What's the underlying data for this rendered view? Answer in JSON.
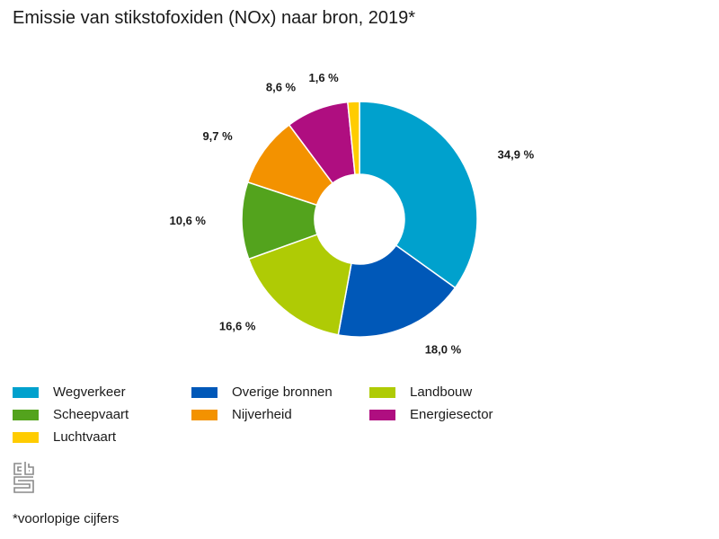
{
  "chart_data": {
    "type": "pie",
    "variant": "donut",
    "title": "Emissie van stikstofoxiden (NOx) naar bron, 2019*",
    "unit": "%",
    "start": "top",
    "direction": "clockwise",
    "slices": [
      {
        "name": "Wegverkeer",
        "value": 34.9,
        "label": "34,9 %",
        "color": "#00a1cd"
      },
      {
        "name": "Overige bronnen",
        "value": 18.0,
        "label": "18,0 %",
        "color": "#0058b8"
      },
      {
        "name": "Landbouw",
        "value": 16.6,
        "label": "16,6 %",
        "color": "#afcb05"
      },
      {
        "name": "Scheepvaart",
        "value": 10.6,
        "label": "10,6 %",
        "color": "#53a31d"
      },
      {
        "name": "Nijverheid",
        "value": 9.7,
        "label": "9,7 %",
        "color": "#f39200"
      },
      {
        "name": "Energiesector",
        "value": 8.6,
        "label": "8,6 %",
        "color": "#af0e80"
      },
      {
        "name": "Luchtvaart",
        "value": 1.6,
        "label": "1,6 %",
        "color": "#ffcc00"
      }
    ],
    "legend_position": "bottom",
    "legend": [
      {
        "label": "Wegverkeer",
        "color": "#00a1cd"
      },
      {
        "label": "Overige bronnen",
        "color": "#0058b8"
      },
      {
        "label": "Landbouw",
        "color": "#afcb05"
      },
      {
        "label": "Scheepvaart",
        "color": "#53a31d"
      },
      {
        "label": "Nijverheid",
        "color": "#f39200"
      },
      {
        "label": "Energiesector",
        "color": "#af0e80"
      },
      {
        "label": "Luchtvaart",
        "color": "#ffcc00"
      }
    ]
  },
  "footnote": "*voorlopige cijfers",
  "logo": "cbs-logo-icon"
}
